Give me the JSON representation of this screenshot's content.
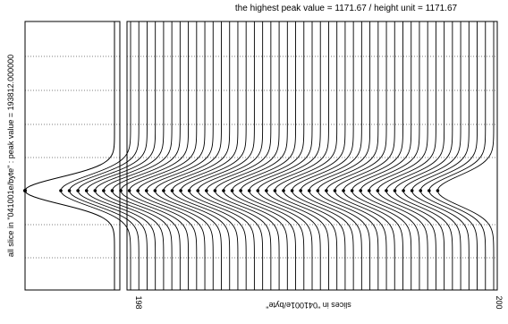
{
  "chart_data": {
    "type": "line",
    "title": "the highest peak value = 1171.67 / height unit = 1171.67",
    "left_panel_label": "all slice in \"041001e/byte\" : peak value = 193812.000000",
    "right_panel_label": "slices in \"041001e/byte\"",
    "x_tick_start": "198",
    "x_tick_end": "200",
    "slice_count": 45,
    "grid": true,
    "line_color": "#000000",
    "background": "#ffffff"
  }
}
